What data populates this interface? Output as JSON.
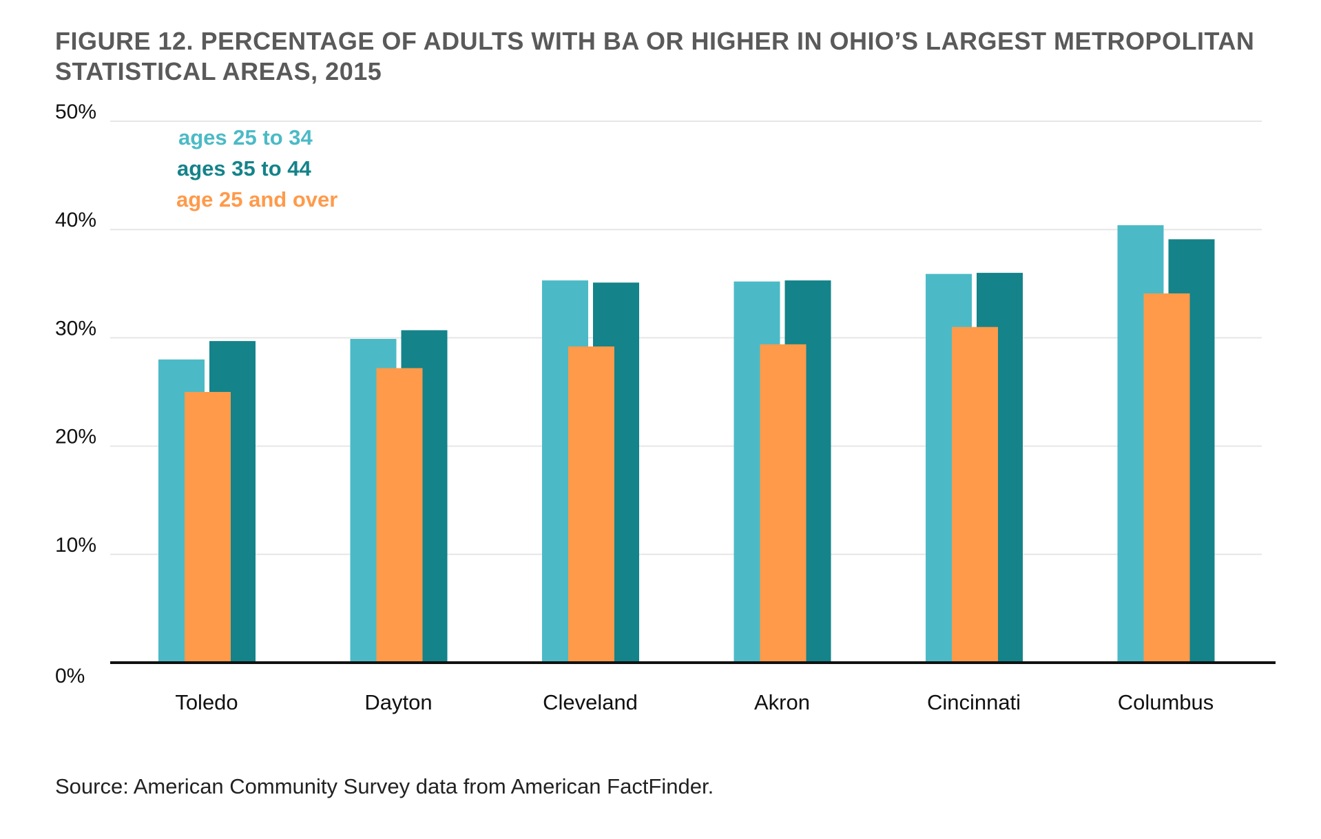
{
  "title_line1": "FIGURE 12. PERCENTAGE OF ADULTS WITH BA OR HIGHER IN OHIO’S LARGEST METROPOLITAN",
  "title_line2": "STATISTICAL AREAS, 2015",
  "source": "Source: American Community Survey data from American FactFinder.",
  "colors": {
    "ages_25_34": "#4bbac6",
    "ages_35_44": "#14838a",
    "age_25_over": "#ff9a4a",
    "gridline": "#e6e6e6",
    "axis": "#111111"
  },
  "chart_data": {
    "type": "bar",
    "title": "FIGURE 12. PERCENTAGE OF ADULTS WITH BA OR HIGHER IN OHIO’S LARGEST METROPOLITAN STATISTICAL AREAS, 2015",
    "xlabel": "",
    "ylabel": "",
    "ylim": [
      0,
      50
    ],
    "yticks": [
      0,
      10,
      20,
      30,
      40,
      50
    ],
    "ytick_labels": [
      "0%",
      "10%",
      "20%",
      "30%",
      "40%",
      "50%"
    ],
    "grid": true,
    "legend_position": "top-left",
    "categories": [
      "Toledo",
      "Dayton",
      "Cleveland",
      "Akron",
      "Cincinnati",
      "Columbus"
    ],
    "series": [
      {
        "name": "ages 25 to 34",
        "color": "#4bbac6",
        "values": [
          28.0,
          29.9,
          35.3,
          35.2,
          35.9,
          40.4
        ]
      },
      {
        "name": "ages 35 to 44",
        "color": "#14838a",
        "values": [
          29.7,
          30.7,
          35.1,
          35.3,
          36.0,
          39.1
        ]
      },
      {
        "name": "age 25 and over",
        "color": "#ff9a4a",
        "values": [
          25.0,
          27.2,
          29.2,
          29.4,
          31.0,
          34.1
        ]
      }
    ]
  }
}
